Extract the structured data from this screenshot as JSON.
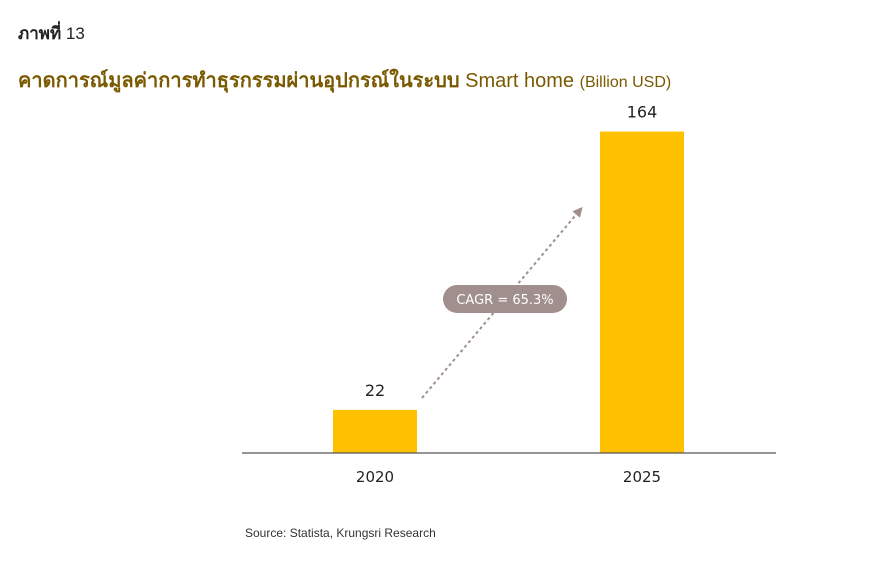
{
  "figure": {
    "label": "ภาพที่",
    "number": "13"
  },
  "title": {
    "thai": "คาดการณ์มูลค่าการทำธุรกรรมผ่านอุปกรณ์ในระบบ",
    "english": "Smart home",
    "unit": "(Billion USD)"
  },
  "source": "Source: Statista, Krungsri Research",
  "colors": {
    "bar": "#FFC000",
    "title": "#7a5a00",
    "cagr_badge": "#A08F8C",
    "arrow": "#A08F8C",
    "axis": "#555555"
  },
  "chart_data": {
    "type": "bar",
    "categories": [
      "2020",
      "2025"
    ],
    "values": [
      22,
      164
    ],
    "ylim": [
      0,
      175
    ],
    "grid": false,
    "legend": "none",
    "annotations": [
      {
        "type": "growth-arrow",
        "from": "2020",
        "to": "2025",
        "label": "CAGR = 65.3%"
      }
    ]
  }
}
